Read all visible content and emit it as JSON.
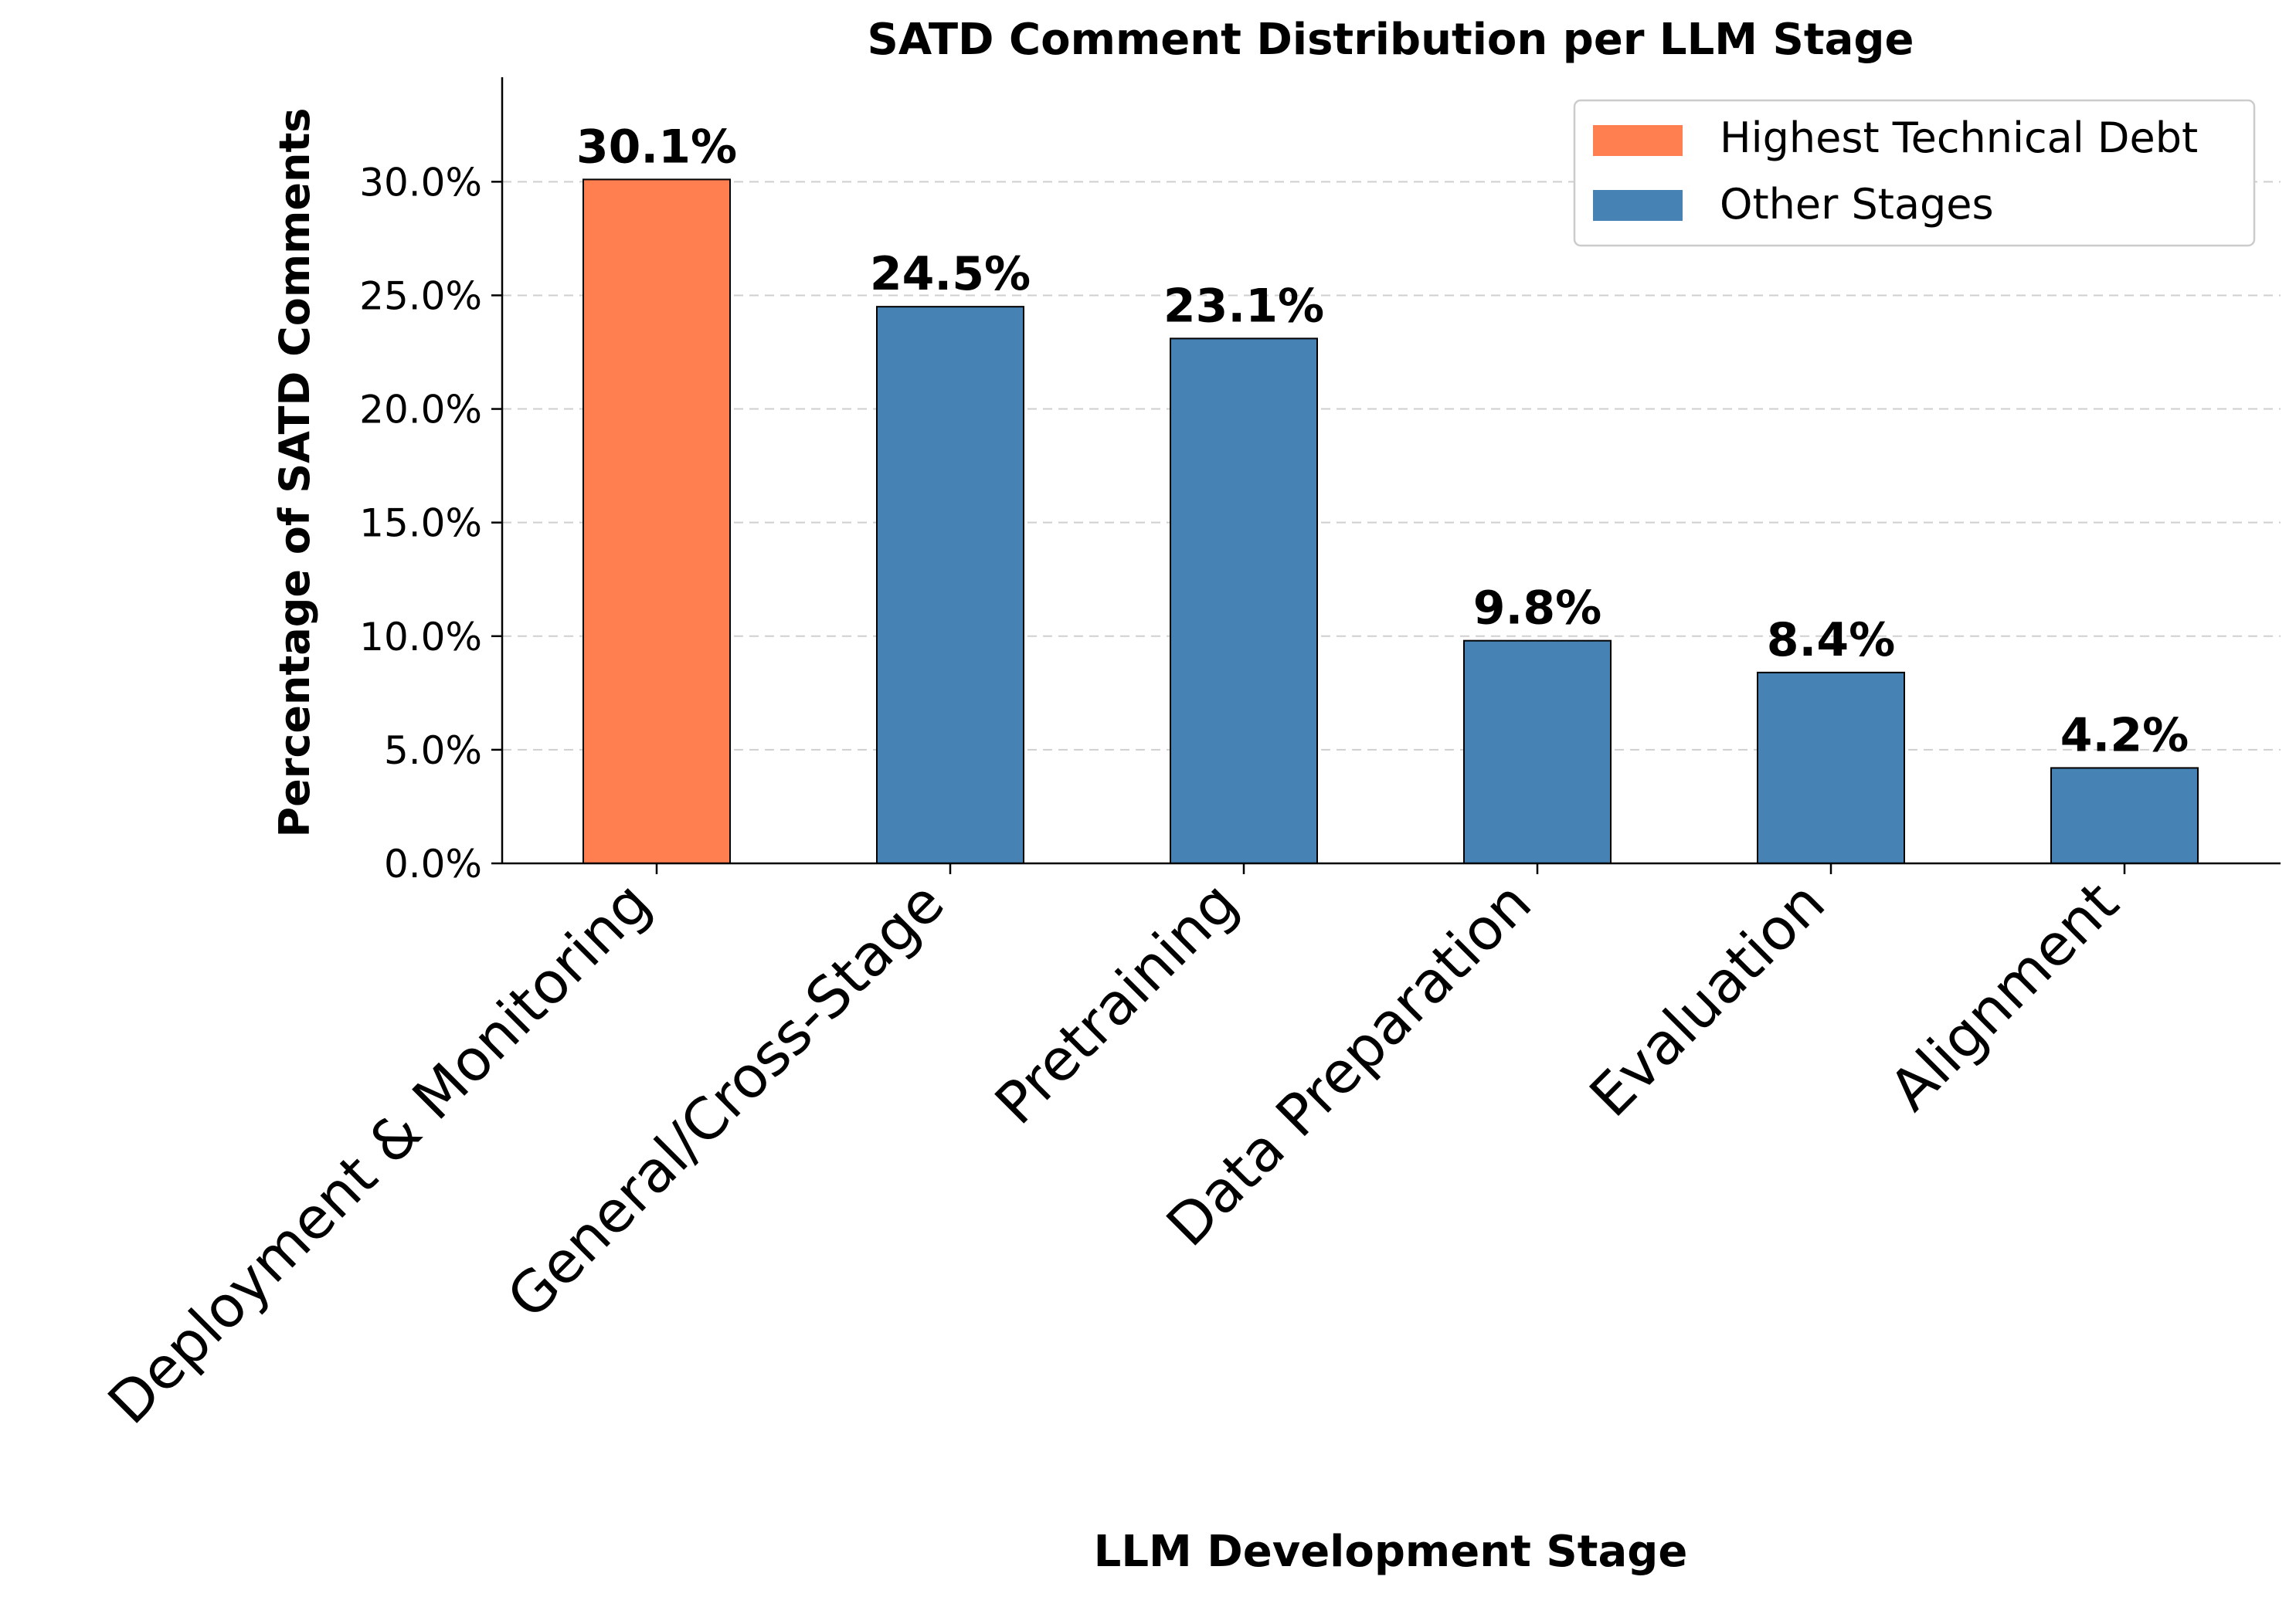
{
  "chart_data": {
    "type": "bar",
    "title": "SATD Comment Distribution per LLM Stage",
    "xlabel": "LLM Development Stage",
    "ylabel": "Percentage of SATD Comments",
    "categories": [
      "Deployment & Monitoring",
      "General/Cross-Stage",
      "Pretraining",
      "Data Preparation",
      "Evaluation",
      "Alignment"
    ],
    "values": [
      30.1,
      24.5,
      23.1,
      9.8,
      8.4,
      4.2
    ],
    "value_labels": [
      "30.1%",
      "24.5%",
      "23.1%",
      "9.8%",
      "8.4%",
      "4.2%"
    ],
    "highlight": [
      true,
      false,
      false,
      false,
      false,
      false
    ],
    "ylim": [
      0,
      34.6
    ],
    "yticks": [
      0,
      5,
      10,
      15,
      20,
      25,
      30
    ],
    "ytick_labels": [
      "0.0%",
      "5.0%",
      "10.0%",
      "15.0%",
      "20.0%",
      "25.0%",
      "30.0%"
    ],
    "grid": "y-dashed",
    "legend": {
      "position": "top-right",
      "entries": [
        {
          "label": "Highest Technical Debt",
          "color": "#ff7f50"
        },
        {
          "label": "Other Stages",
          "color": "#4682b4"
        }
      ]
    },
    "colors": {
      "highlight": "#ff7f50",
      "other": "#4682b4",
      "edge": "#000000"
    }
  }
}
